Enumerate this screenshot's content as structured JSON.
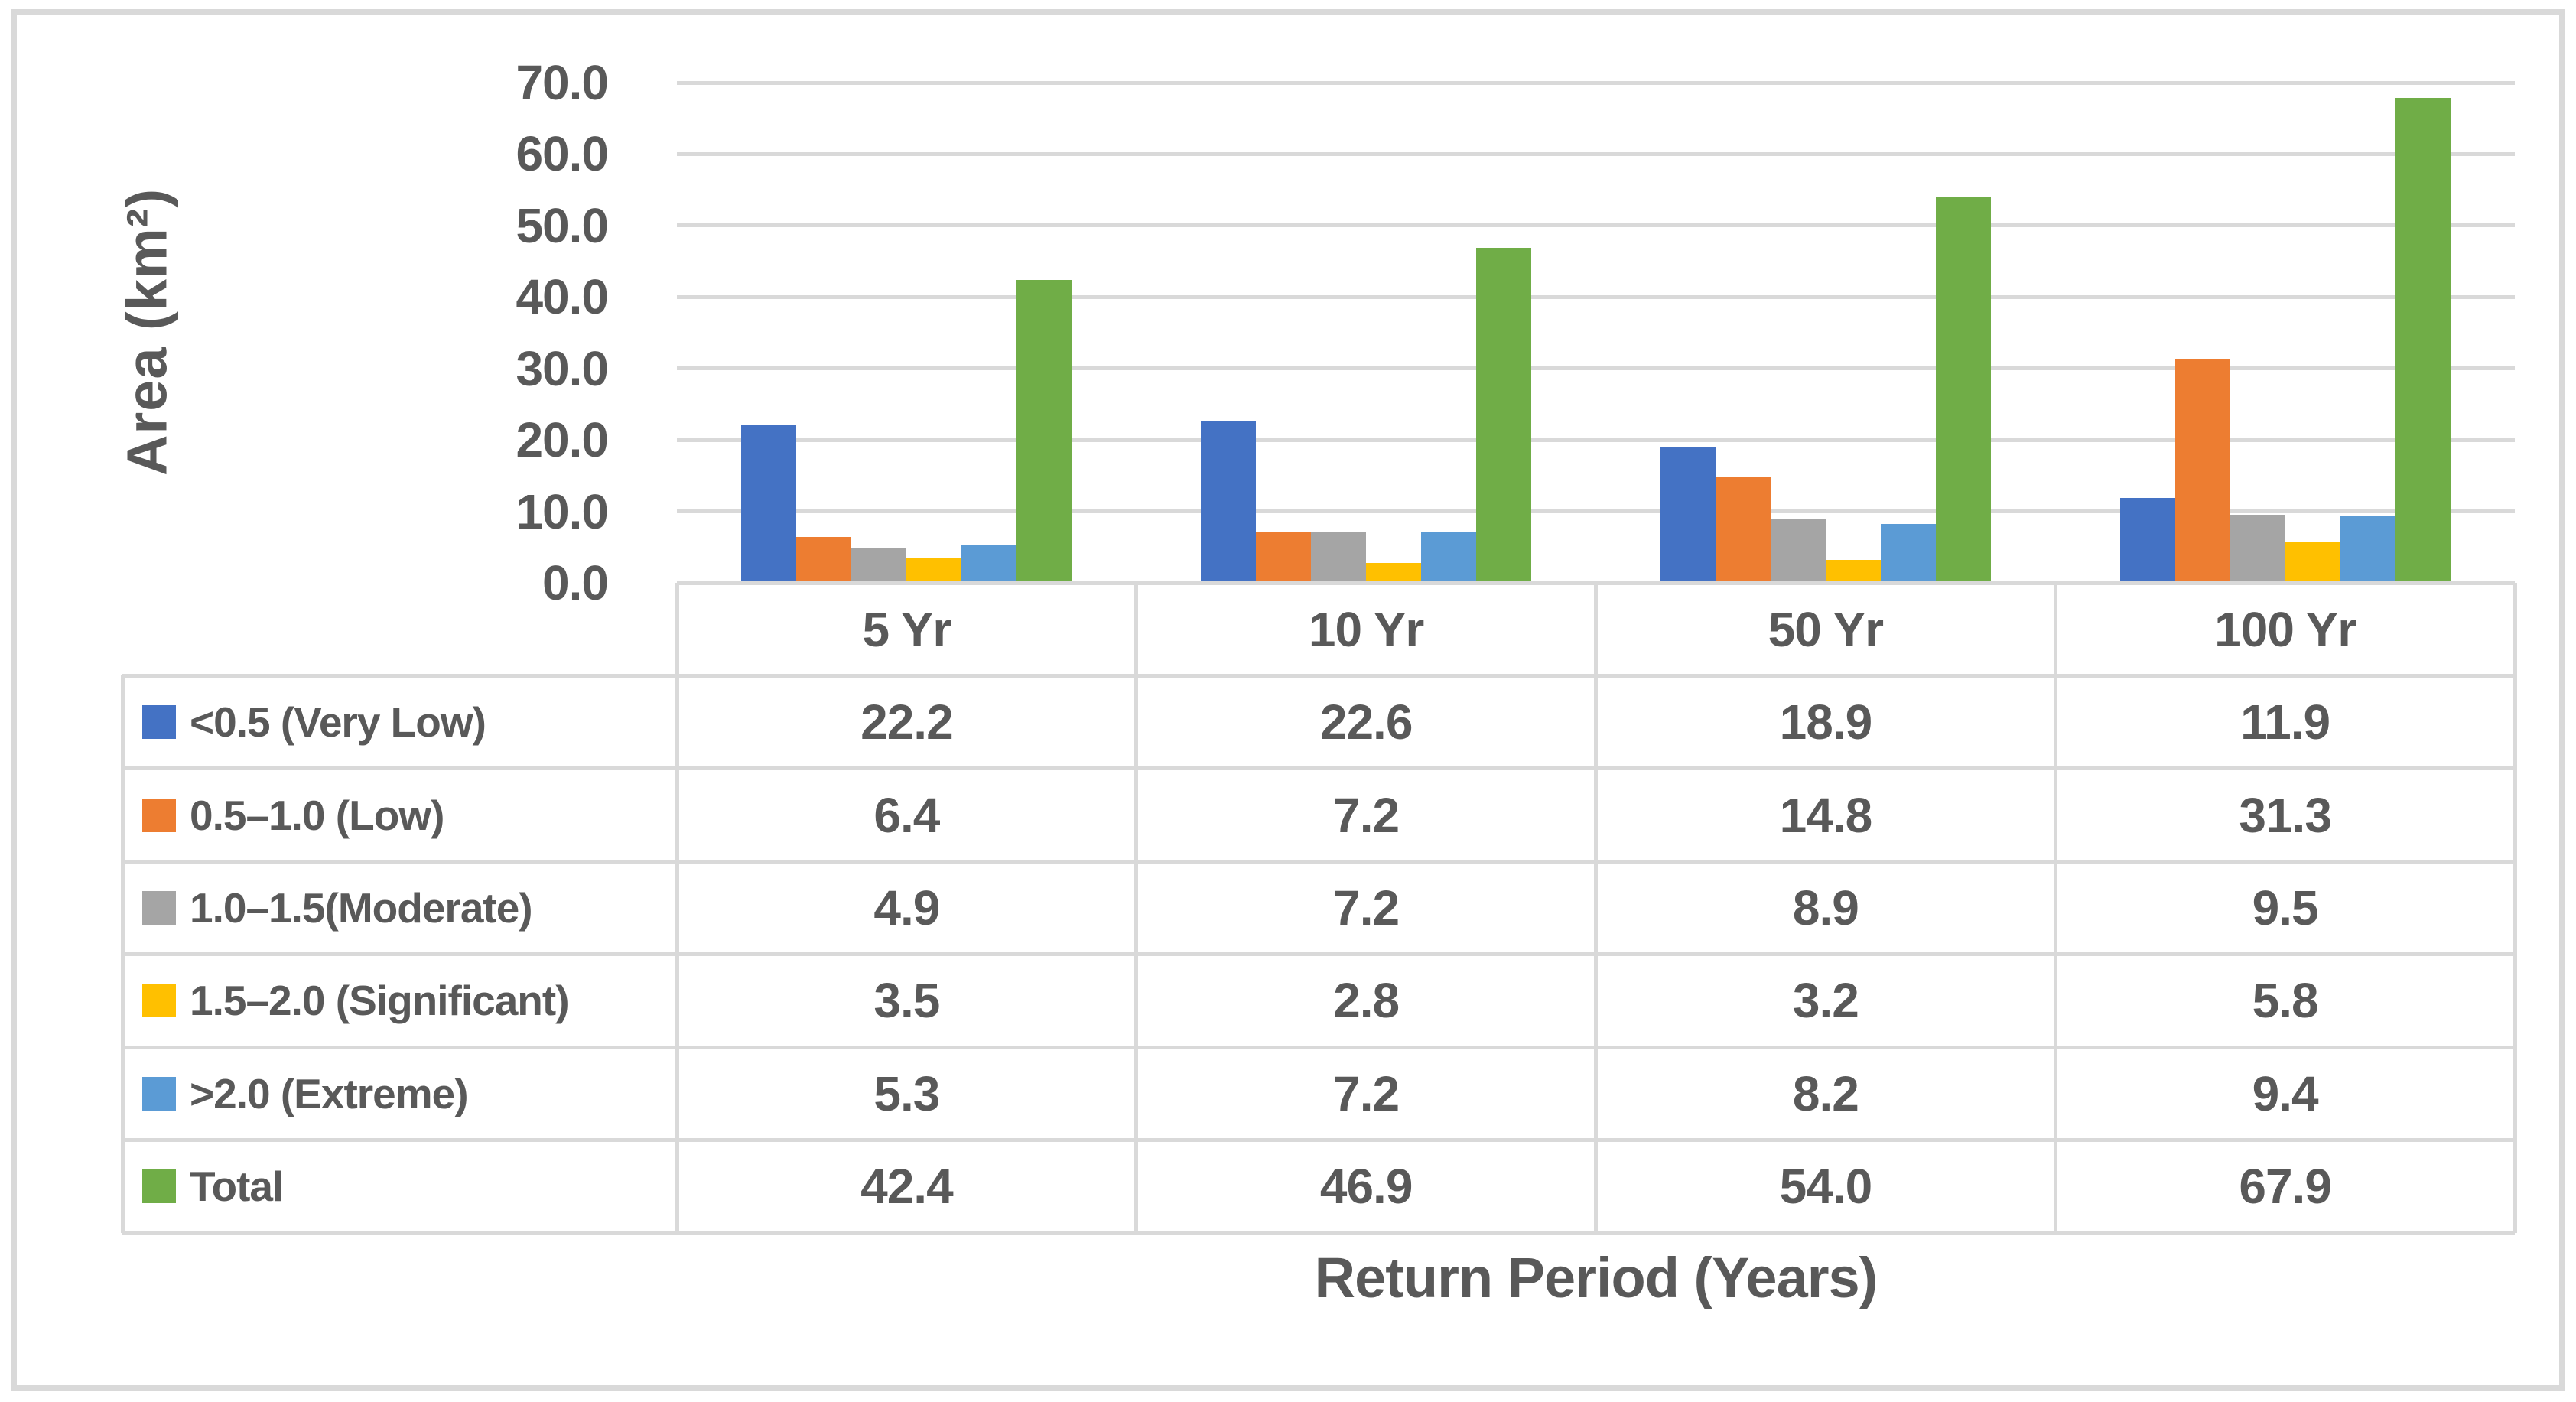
{
  "chart_data": {
    "type": "bar",
    "title": "",
    "ylabel": "Area (km²)",
    "xlabel": "Return Period (Years)",
    "categories": [
      "5 Yr",
      "10 Yr",
      "50 Yr",
      "100 Yr"
    ],
    "series": [
      {
        "name": "<0.5 (Very Low)",
        "color": "#4472C4",
        "values": [
          22.2,
          22.6,
          18.9,
          11.9
        ]
      },
      {
        "name": "0.5–1.0 (Low)",
        "color": "#ED7D31",
        "values": [
          6.4,
          7.2,
          14.8,
          31.3
        ]
      },
      {
        "name": "1.0–1.5(Moderate)",
        "color": "#A5A5A5",
        "values": [
          4.9,
          7.2,
          8.9,
          9.5
        ]
      },
      {
        "name": "1.5–2.0 (Significant)",
        "color": "#FFC000",
        "values": [
          3.5,
          2.8,
          3.2,
          5.8
        ]
      },
      {
        "name": ">2.0 (Extreme)",
        "color": "#5B9BD5",
        "values": [
          5.3,
          7.2,
          8.2,
          9.4
        ]
      },
      {
        "name": "Total",
        "color": "#70AD47",
        "values": [
          42.4,
          46.9,
          54.0,
          67.9
        ]
      }
    ],
    "ylim": [
      0,
      70
    ],
    "ytick_values": [
      0,
      10,
      20,
      30,
      40,
      50,
      60,
      70
    ],
    "ytick_labels": [
      "0.0",
      "10.0",
      "20.0",
      "30.0",
      "40.0",
      "50.0",
      "60.0",
      "70.0"
    ],
    "value_decimals": 1,
    "grid": true,
    "legend_position": "data-table-left"
  },
  "style": {
    "background": "#FFFFFF",
    "frame_color": "#D9D9D9",
    "grid_color": "#D9D9D9",
    "text_color": "#595959"
  }
}
